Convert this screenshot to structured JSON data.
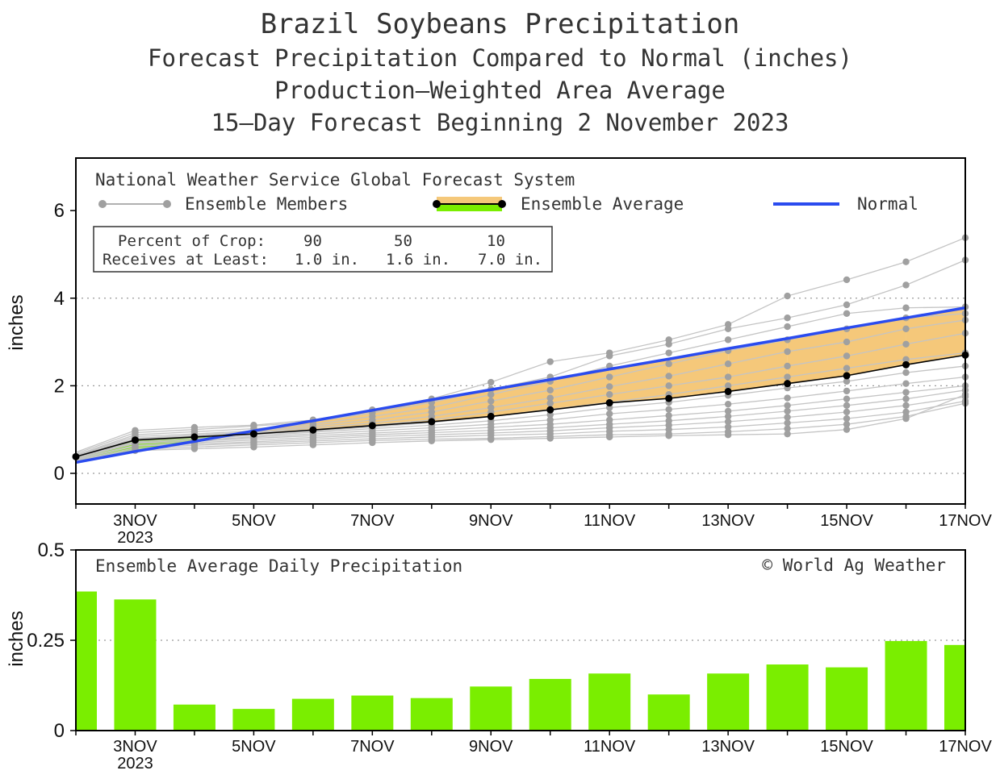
{
  "titles": {
    "line1": "Brazil Soybeans Precipitation",
    "line2": "Forecast Precipitation Compared to Normal (inches)",
    "line3": "Production–Weighted Area Average",
    "line4": "15–Day Forecast Beginning 2 November 2023"
  },
  "legend": {
    "model": "National Weather Service Global Forecast System",
    "members": "Ensemble Members",
    "average": "Ensemble Average",
    "normal": "Normal"
  },
  "crop_box": {
    "row1_label": "Percent of Crop:",
    "row2_label": "Receives at Least:",
    "percents": [
      "90",
      "50",
      "10"
    ],
    "amounts": [
      "1.0 in.",
      "1.6 in.",
      "7.0 in."
    ]
  },
  "bottom": {
    "title": "Ensemble Average Daily Precipitation",
    "credit": "© World Ag Weather"
  },
  "colors": {
    "member": "#a0a0a0",
    "average": "#000000",
    "normal": "#2a4bef",
    "above": "#7aee00",
    "below": "#f5c87a",
    "bar": "#7aee00"
  },
  "chart_data": [
    {
      "type": "line",
      "title": "Forecast Precipitation Compared to Normal (inches)",
      "ylabel": "inches",
      "xlabel": "",
      "x_days": [
        2,
        3,
        4,
        5,
        6,
        7,
        8,
        9,
        10,
        11,
        12,
        13,
        14,
        15,
        16,
        17
      ],
      "xlim": [
        2,
        17
      ],
      "ylim": [
        -0.7,
        7.2
      ],
      "yticks": [
        "0",
        "2",
        "4",
        "6"
      ],
      "ytick_values": [
        0,
        2,
        4,
        6
      ],
      "xtick_days": [
        3,
        5,
        7,
        9,
        11,
        13,
        15,
        17
      ],
      "xtick_labels": [
        "3NOV",
        "5NOV",
        "7NOV",
        "9NOV",
        "11NOV",
        "13NOV",
        "15NOV",
        "17NOV"
      ],
      "year_label": "2023",
      "grid": "dotted at 0, 2, 4",
      "series": [
        {
          "name": "Ensemble Average",
          "values": [
            0.38,
            0.76,
            0.83,
            0.9,
            0.99,
            1.09,
            1.18,
            1.3,
            1.45,
            1.61,
            1.71,
            1.87,
            2.05,
            2.23,
            2.48,
            2.7
          ]
        },
        {
          "name": "Normal",
          "values": [
            0.25,
            0.5,
            0.73,
            0.97,
            1.2,
            1.44,
            1.68,
            1.91,
            2.14,
            2.38,
            2.61,
            2.85,
            3.08,
            3.32,
            3.55,
            3.78
          ]
        }
      ],
      "members": [
        [
          0.48,
          0.98,
          1.05,
          1.1,
          1.22,
          1.45,
          1.7,
          2.08,
          2.55,
          2.75,
          3.05,
          3.4,
          4.05,
          4.42,
          4.83,
          5.38
        ],
        [
          0.45,
          0.93,
          1.0,
          1.08,
          1.18,
          1.38,
          1.62,
          1.92,
          2.2,
          2.68,
          2.95,
          3.3,
          3.55,
          3.85,
          4.3,
          4.87
        ],
        [
          0.42,
          0.88,
          0.95,
          1.02,
          1.12,
          1.3,
          1.5,
          1.8,
          2.1,
          2.45,
          2.75,
          3.05,
          3.35,
          3.65,
          3.78,
          3.8
        ],
        [
          0.41,
          0.84,
          0.9,
          0.97,
          1.08,
          1.22,
          1.4,
          1.65,
          1.9,
          2.2,
          2.5,
          2.8,
          3.05,
          3.3,
          3.55,
          3.65
        ],
        [
          0.4,
          0.8,
          0.87,
          0.94,
          1.04,
          1.15,
          1.3,
          1.5,
          1.72,
          1.98,
          2.22,
          2.5,
          2.78,
          3.0,
          3.3,
          3.5
        ],
        [
          0.39,
          0.78,
          0.85,
          0.92,
          1.0,
          1.1,
          1.22,
          1.4,
          1.6,
          1.8,
          2.0,
          2.2,
          2.45,
          2.68,
          2.95,
          3.2
        ],
        [
          0.38,
          0.75,
          0.82,
          0.89,
          0.97,
          1.06,
          1.16,
          1.3,
          1.46,
          1.62,
          1.8,
          2.0,
          2.2,
          2.4,
          2.6,
          2.75
        ],
        [
          0.37,
          0.72,
          0.79,
          0.86,
          0.94,
          1.02,
          1.1,
          1.2,
          1.34,
          1.5,
          1.62,
          1.78,
          1.95,
          2.1,
          2.3,
          2.45
        ],
        [
          0.36,
          0.7,
          0.76,
          0.83,
          0.9,
          0.97,
          1.04,
          1.12,
          1.22,
          1.36,
          1.46,
          1.58,
          1.72,
          1.88,
          2.05,
          2.2
        ],
        [
          0.35,
          0.68,
          0.73,
          0.8,
          0.86,
          0.92,
          0.98,
          1.05,
          1.12,
          1.22,
          1.32,
          1.42,
          1.55,
          1.7,
          1.85,
          2.0
        ],
        [
          0.33,
          0.64,
          0.7,
          0.76,
          0.82,
          0.88,
          0.93,
          0.98,
          1.04,
          1.12,
          1.2,
          1.3,
          1.42,
          1.55,
          1.7,
          1.9
        ],
        [
          0.32,
          0.62,
          0.67,
          0.72,
          0.78,
          0.84,
          0.88,
          0.92,
          0.97,
          1.04,
          1.1,
          1.18,
          1.28,
          1.4,
          1.55,
          1.75
        ],
        [
          0.3,
          0.58,
          0.64,
          0.69,
          0.74,
          0.79,
          0.83,
          0.87,
          0.9,
          0.96,
          1.0,
          1.06,
          1.15,
          1.25,
          1.4,
          1.65
        ],
        [
          0.28,
          0.55,
          0.6,
          0.65,
          0.7,
          0.75,
          0.78,
          0.8,
          0.84,
          0.88,
          0.9,
          0.95,
          1.02,
          1.12,
          1.3,
          1.6
        ],
        [
          0.27,
          0.52,
          0.56,
          0.6,
          0.65,
          0.7,
          0.74,
          0.77,
          0.8,
          0.83,
          0.86,
          0.88,
          0.9,
          1.0,
          1.25,
          1.8
        ]
      ]
    },
    {
      "type": "bar",
      "title": "Ensemble Average Daily Precipitation",
      "ylabel": "inches",
      "x_days": [
        2,
        3,
        4,
        5,
        6,
        7,
        8,
        9,
        10,
        11,
        12,
        13,
        14,
        15,
        16,
        17
      ],
      "values": [
        0.385,
        0.363,
        0.072,
        0.06,
        0.088,
        0.097,
        0.09,
        0.122,
        0.143,
        0.158,
        0.1,
        0.158,
        0.183,
        0.175,
        0.248,
        0.237
      ],
      "ylim": [
        0,
        0.5
      ],
      "yticks": [
        "0",
        "0.25",
        "0.5"
      ],
      "ytick_values": [
        0,
        0.25,
        0.5
      ],
      "xtick_days": [
        3,
        5,
        7,
        9,
        11,
        13,
        15,
        17
      ],
      "xtick_labels": [
        "3NOV",
        "5NOV",
        "7NOV",
        "9NOV",
        "11NOV",
        "13NOV",
        "15NOV",
        "17NOV"
      ],
      "year_label": "2023",
      "grid": "dotted at 0.25"
    }
  ]
}
